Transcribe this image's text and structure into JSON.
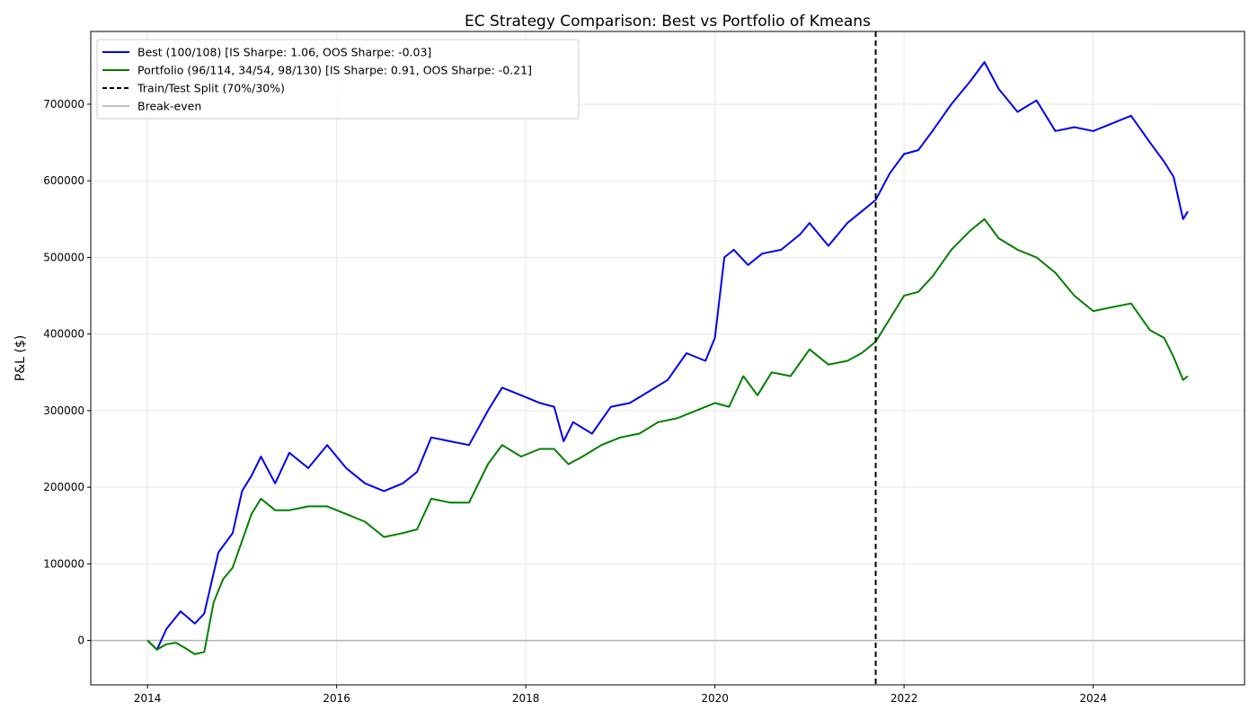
{
  "chart_data": {
    "type": "line",
    "title": "EC Strategy Comparison: Best vs Portfolio of Kmeans",
    "xlabel": "",
    "ylabel": "P&L ($)",
    "xlim": [
      2013.4,
      2025.6
    ],
    "ylim": [
      -58000,
      795000
    ],
    "x_ticks": [
      2014,
      2016,
      2018,
      2020,
      2022,
      2024
    ],
    "x_tick_labels": [
      "2014",
      "2016",
      "2018",
      "2020",
      "2022",
      "2024"
    ],
    "y_ticks": [
      0,
      100000,
      200000,
      300000,
      400000,
      500000,
      600000,
      700000
    ],
    "y_tick_labels": [
      "0",
      "100000",
      "200000",
      "300000",
      "400000",
      "500000",
      "600000",
      "700000"
    ],
    "grid": true,
    "legend_placement": "top-left",
    "split_x": 2021.7,
    "breakeven_y": 0,
    "series": [
      {
        "name": "Best (100/108) [IS Sharpe: 1.06, OOS Sharpe: -0.03]",
        "color": "#0000ee",
        "x": [
          2014.0,
          2014.1,
          2014.2,
          2014.35,
          2014.5,
          2014.6,
          2014.75,
          2014.9,
          2015.0,
          2015.1,
          2015.2,
          2015.35,
          2015.5,
          2015.7,
          2015.9,
          2016.1,
          2016.3,
          2016.5,
          2016.7,
          2016.85,
          2017.0,
          2017.2,
          2017.4,
          2017.6,
          2017.75,
          2017.95,
          2018.15,
          2018.3,
          2018.4,
          2018.5,
          2018.7,
          2018.9,
          2019.1,
          2019.3,
          2019.5,
          2019.7,
          2019.9,
          2020.0,
          2020.1,
          2020.2,
          2020.35,
          2020.5,
          2020.7,
          2020.9,
          2021.0,
          2021.2,
          2021.4,
          2021.55,
          2021.7,
          2021.85,
          2022.0,
          2022.15,
          2022.3,
          2022.5,
          2022.7,
          2022.85,
          2023.0,
          2023.2,
          2023.4,
          2023.6,
          2023.8,
          2024.0,
          2024.2,
          2024.4,
          2024.6,
          2024.75,
          2024.85,
          2024.95,
          2025.0
        ],
        "values": [
          0,
          -12000,
          15000,
          38000,
          22000,
          35000,
          115000,
          140000,
          195000,
          215000,
          240000,
          205000,
          245000,
          225000,
          255000,
          225000,
          205000,
          195000,
          205000,
          220000,
          265000,
          260000,
          255000,
          300000,
          330000,
          320000,
          310000,
          305000,
          260000,
          285000,
          270000,
          305000,
          310000,
          325000,
          340000,
          375000,
          365000,
          395000,
          500000,
          510000,
          490000,
          505000,
          510000,
          530000,
          545000,
          515000,
          545000,
          560000,
          575000,
          610000,
          635000,
          640000,
          665000,
          700000,
          730000,
          755000,
          720000,
          690000,
          705000,
          665000,
          670000,
          665000,
          675000,
          685000,
          650000,
          625000,
          605000,
          550000,
          560000
        ]
      },
      {
        "name": "Portfolio (96/114, 34/54, 98/130) [IS Sharpe: 0.91, OOS Sharpe: -0.21]",
        "color": "#007f00",
        "x": [
          2014.0,
          2014.1,
          2014.2,
          2014.3,
          2014.4,
          2014.5,
          2014.6,
          2014.7,
          2014.8,
          2014.9,
          2015.0,
          2015.1,
          2015.2,
          2015.35,
          2015.5,
          2015.7,
          2015.9,
          2016.1,
          2016.3,
          2016.5,
          2016.7,
          2016.85,
          2017.0,
          2017.2,
          2017.4,
          2017.6,
          2017.75,
          2017.95,
          2018.15,
          2018.3,
          2018.45,
          2018.6,
          2018.8,
          2019.0,
          2019.2,
          2019.4,
          2019.6,
          2019.8,
          2020.0,
          2020.15,
          2020.3,
          2020.45,
          2020.6,
          2020.8,
          2021.0,
          2021.2,
          2021.4,
          2021.55,
          2021.7,
          2021.85,
          2022.0,
          2022.15,
          2022.3,
          2022.5,
          2022.7,
          2022.85,
          2023.0,
          2023.2,
          2023.4,
          2023.6,
          2023.8,
          2024.0,
          2024.2,
          2024.4,
          2024.6,
          2024.75,
          2024.85,
          2024.95,
          2025.0
        ],
        "values": [
          0,
          -12000,
          -5000,
          -3000,
          -10000,
          -18000,
          -15000,
          50000,
          80000,
          95000,
          130000,
          165000,
          185000,
          170000,
          170000,
          175000,
          175000,
          165000,
          155000,
          135000,
          140000,
          145000,
          185000,
          180000,
          180000,
          230000,
          255000,
          240000,
          250000,
          250000,
          230000,
          240000,
          255000,
          265000,
          270000,
          285000,
          290000,
          300000,
          310000,
          305000,
          345000,
          320000,
          350000,
          345000,
          380000,
          360000,
          365000,
          375000,
          390000,
          420000,
          450000,
          455000,
          475000,
          510000,
          535000,
          550000,
          525000,
          510000,
          500000,
          480000,
          450000,
          430000,
          435000,
          440000,
          405000,
          395000,
          370000,
          340000,
          345000
        ]
      }
    ],
    "legend": [
      {
        "label": "Best (100/108) [IS Sharpe: 1.06, OOS Sharpe: -0.03]",
        "color": "#0000ee",
        "style": "solid"
      },
      {
        "label": "Portfolio (96/114, 34/54, 98/130) [IS Sharpe: 0.91, OOS Sharpe: -0.21]",
        "color": "#007f00",
        "style": "solid"
      },
      {
        "label": "Train/Test Split (70%/30%)",
        "color": "#000000",
        "style": "dashed"
      },
      {
        "label": "Break-even",
        "color": "#bfbfbf",
        "style": "solid"
      }
    ]
  }
}
